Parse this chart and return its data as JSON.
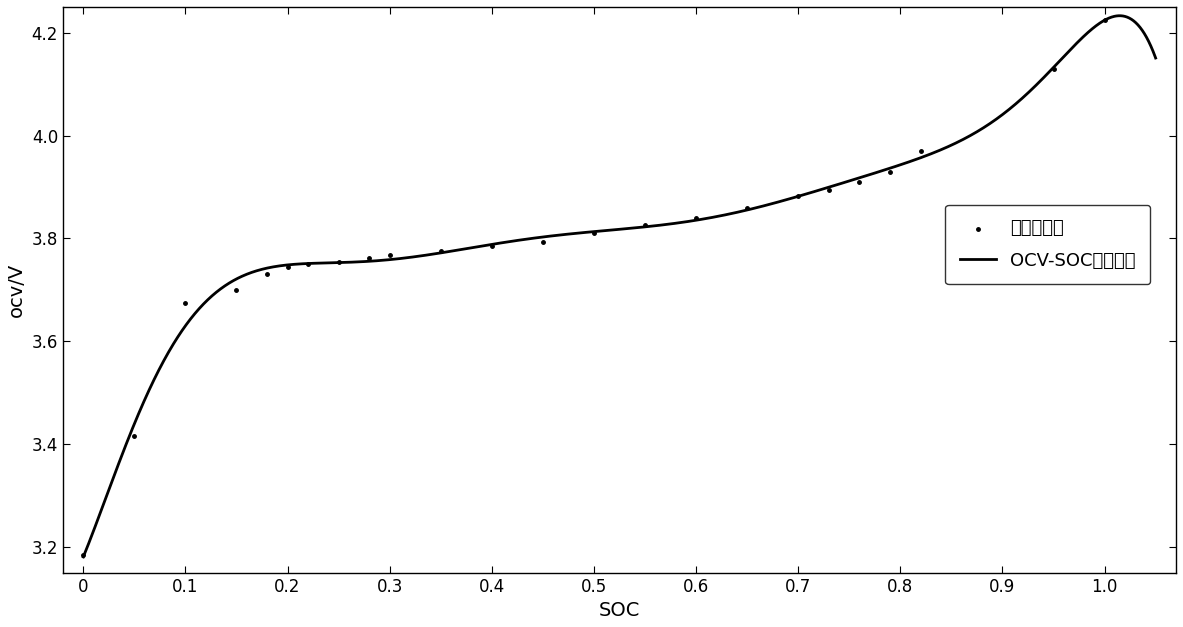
{
  "xlabel": "SOC",
  "ylabel": "ocv/V",
  "xlim": [
    -0.02,
    1.07
  ],
  "ylim": [
    3.15,
    4.25
  ],
  "xticks": [
    0,
    0.1,
    0.2,
    0.3,
    0.4,
    0.5,
    0.6,
    0.7,
    0.8,
    0.9,
    1.0
  ],
  "yticks": [
    3.2,
    3.4,
    3.6,
    3.8,
    4.0,
    4.2
  ],
  "curve_color": "#000000",
  "point_color": "#000000",
  "background_color": "#ffffff",
  "legend_dot_label": "实验数据点",
  "legend_line_label": "OCV-SOC拟合曲线",
  "exp_data_points_soc": [
    0.0,
    0.05,
    0.1,
    0.15,
    0.18,
    0.2,
    0.22,
    0.25,
    0.28,
    0.3,
    0.35,
    0.4,
    0.45,
    0.5,
    0.55,
    0.6,
    0.65,
    0.7,
    0.73,
    0.76,
    0.79,
    0.82,
    0.95,
    1.0
  ],
  "exp_data_points_ocv": [
    3.185,
    3.415,
    3.675,
    3.7,
    3.73,
    3.745,
    3.75,
    3.755,
    3.762,
    3.768,
    3.775,
    3.785,
    3.793,
    3.81,
    3.826,
    3.84,
    3.86,
    3.883,
    3.895,
    3.91,
    3.93,
    3.97,
    4.13,
    4.225
  ],
  "font_size_axis_label": 14,
  "font_size_tick": 12,
  "font_size_legend": 13,
  "line_width": 2.0
}
